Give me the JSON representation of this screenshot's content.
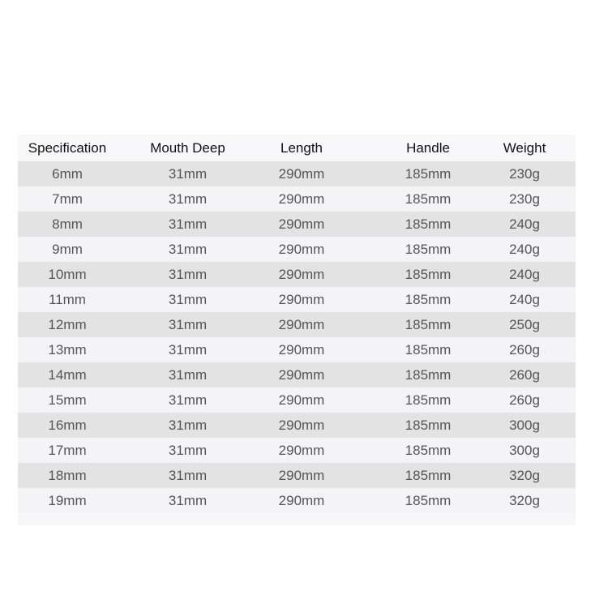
{
  "table": {
    "headers": [
      "Specification",
      "Mouth Deep",
      "Length",
      "Handle",
      "Weight"
    ],
    "rows": [
      [
        "6mm",
        "31mm",
        "290mm",
        "185mm",
        "230g"
      ],
      [
        "7mm",
        "31mm",
        "290mm",
        "185mm",
        "230g"
      ],
      [
        "8mm",
        "31mm",
        "290mm",
        "185mm",
        "240g"
      ],
      [
        "9mm",
        "31mm",
        "290mm",
        "185mm",
        "240g"
      ],
      [
        "10mm",
        "31mm",
        "290mm",
        "185mm",
        "240g"
      ],
      [
        "11mm",
        "31mm",
        "290mm",
        "185mm",
        "240g"
      ],
      [
        "12mm",
        "31mm",
        "290mm",
        "185mm",
        "250g"
      ],
      [
        "13mm",
        "31mm",
        "290mm",
        "185mm",
        "260g"
      ],
      [
        "14mm",
        "31mm",
        "290mm",
        "185mm",
        "260g"
      ],
      [
        "15mm",
        "31mm",
        "290mm",
        "185mm",
        "260g"
      ],
      [
        "16mm",
        "31mm",
        "290mm",
        "185mm",
        "300g"
      ],
      [
        "17mm",
        "31mm",
        "290mm",
        "185mm",
        "300g"
      ],
      [
        "18mm",
        "31mm",
        "290mm",
        "185mm",
        "320g"
      ],
      [
        "19mm",
        "31mm",
        "290mm",
        "185mm",
        "320g"
      ]
    ]
  },
  "colors": {
    "row_even": "#e3e3e3",
    "row_odd": "#f4f4f6",
    "text": "#555555",
    "header_text": "#111111"
  }
}
